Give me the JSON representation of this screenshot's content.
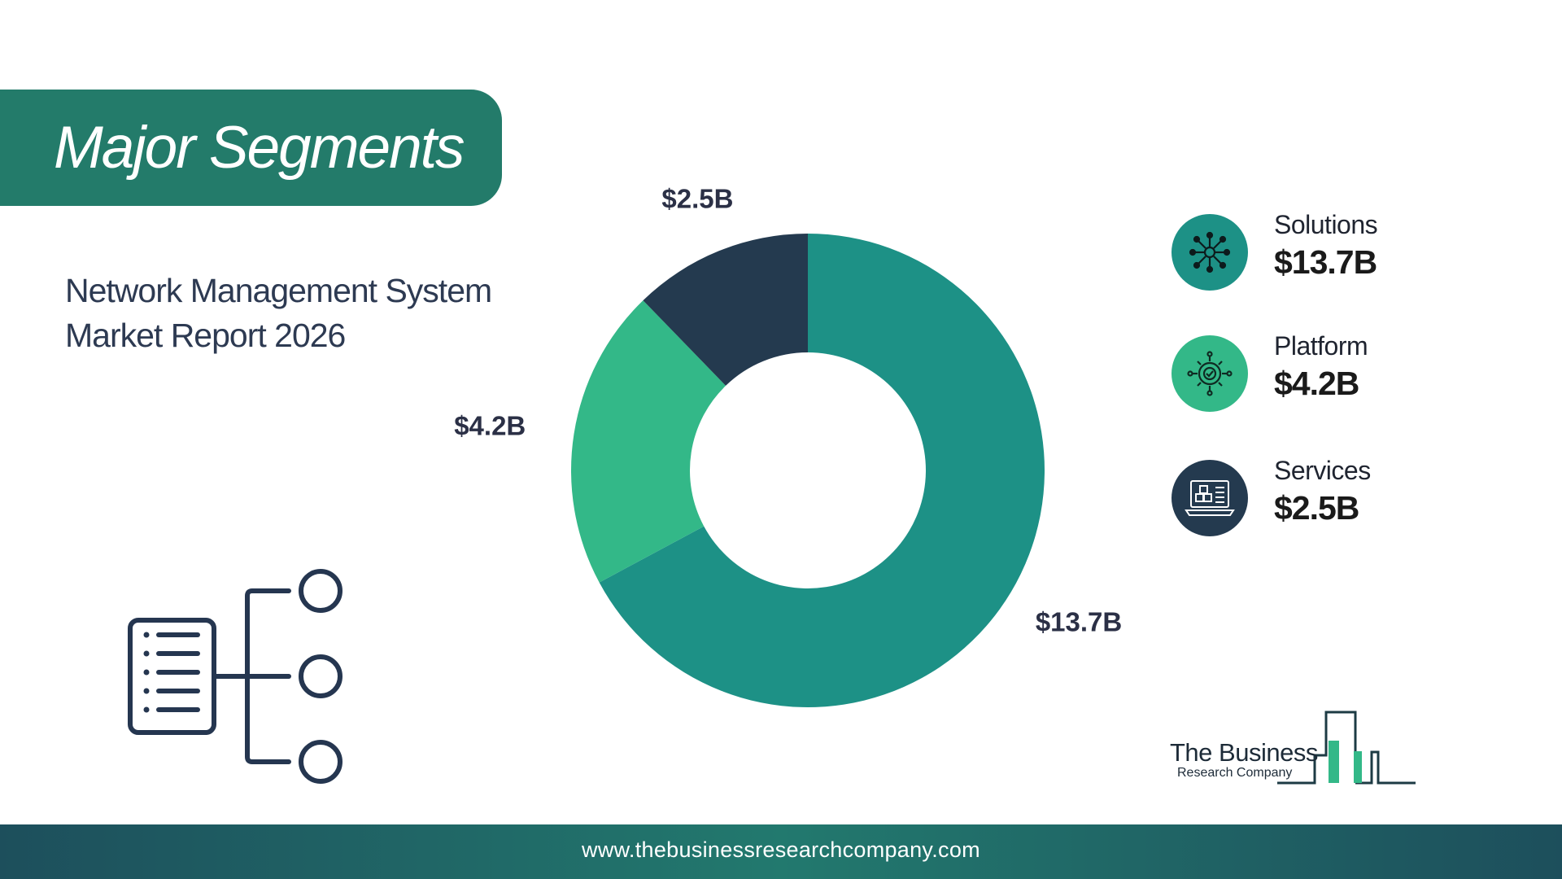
{
  "header": {
    "title": "Major Segments"
  },
  "report": {
    "line1": "Network Management System",
    "line2": "Market Report 2026"
  },
  "chart_data": {
    "type": "donut",
    "categories": [
      "Solutions",
      "Platform",
      "Services"
    ],
    "values": [
      13.7,
      4.2,
      2.5
    ],
    "unit": "$B",
    "data_labels": [
      "$13.7B",
      "$4.2B",
      "$2.5B"
    ],
    "colors": [
      "#1d9186",
      "#33b888",
      "#243a4f"
    ],
    "legend_position": "right"
  },
  "legend": {
    "items": [
      {
        "name": "Solutions",
        "value": "$13.7B",
        "icon": "network-people-icon",
        "color": "#1d9186"
      },
      {
        "name": "Platform",
        "value": "$4.2B",
        "icon": "gear-check-icon",
        "color": "#33b888"
      },
      {
        "name": "Services",
        "value": "$2.5B",
        "icon": "laptop-boxes-icon",
        "color": "#243a4f"
      }
    ]
  },
  "decoration": {
    "icon": "list-hierarchy-icon"
  },
  "logo": {
    "line1": "The Business",
    "line2": "Research Company"
  },
  "footer": {
    "url": "www.thebusinessresearchcompany.com"
  }
}
